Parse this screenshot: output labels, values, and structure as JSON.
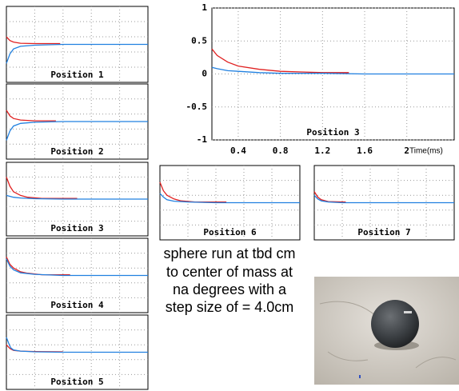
{
  "chart_data": [
    {
      "type": "line",
      "title": "Position 1",
      "xlim": [
        0,
        2
      ],
      "ylim": [
        -1,
        1
      ],
      "series": [
        {
          "color": "#e02020",
          "x": [
            0,
            0.05,
            0.1,
            0.2,
            0.4,
            0.76
          ],
          "values": [
            0.2,
            0.1,
            0.06,
            0.03,
            0.02,
            0.02
          ]
        },
        {
          "color": "#2080e0",
          "x": [
            0,
            0.05,
            0.1,
            0.2,
            0.4,
            0.8,
            2
          ],
          "values": [
            -0.5,
            -0.25,
            -0.12,
            -0.05,
            -0.02,
            0,
            0
          ]
        }
      ]
    },
    {
      "type": "line",
      "title": "Position 2",
      "xlim": [
        0,
        2
      ],
      "ylim": [
        -1,
        1
      ],
      "series": [
        {
          "color": "#e02020",
          "x": [
            0,
            0.05,
            0.1,
            0.2,
            0.4,
            0.7
          ],
          "values": [
            0.3,
            0.15,
            0.08,
            0.04,
            0.02,
            0.02
          ]
        },
        {
          "color": "#2080e0",
          "x": [
            0,
            0.05,
            0.1,
            0.2,
            0.4,
            0.8,
            2
          ],
          "values": [
            -0.5,
            -0.25,
            -0.12,
            -0.05,
            -0.02,
            0,
            0
          ]
        }
      ]
    },
    {
      "type": "line",
      "title": "Position 3",
      "xlim": [
        0,
        2
      ],
      "ylim": [
        -1,
        1
      ],
      "series": [
        {
          "color": "#e02020",
          "x": [
            0,
            0.05,
            0.1,
            0.2,
            0.3,
            0.5,
            1.0
          ],
          "values": [
            0.6,
            0.35,
            0.2,
            0.1,
            0.05,
            0.02,
            0.02
          ]
        },
        {
          "color": "#2080e0",
          "x": [
            0,
            0.1,
            0.2,
            0.4,
            0.8,
            2
          ],
          "values": [
            0.1,
            0.05,
            0.03,
            0.01,
            0,
            0
          ]
        }
      ]
    },
    {
      "type": "line",
      "title": "Position 4",
      "xlim": [
        0,
        2
      ],
      "ylim": [
        -1,
        1
      ],
      "series": [
        {
          "color": "#e02020",
          "x": [
            0,
            0.05,
            0.1,
            0.2,
            0.3,
            0.5,
            0.9
          ],
          "values": [
            0.5,
            0.3,
            0.2,
            0.1,
            0.06,
            0.02,
            0.02
          ]
        },
        {
          "color": "#2080e0",
          "x": [
            0,
            0.05,
            0.1,
            0.2,
            0.4,
            0.8,
            2
          ],
          "values": [
            0.45,
            0.25,
            0.15,
            0.07,
            0.03,
            0,
            0
          ]
        }
      ]
    },
    {
      "type": "line",
      "title": "Position 5",
      "xlim": [
        0,
        2
      ],
      "ylim": [
        -1,
        1
      ],
      "series": [
        {
          "color": "#e02020",
          "x": [
            0,
            0.05,
            0.1,
            0.2,
            0.4,
            0.8
          ],
          "values": [
            0.2,
            0.1,
            0.05,
            0.03,
            0.02,
            0.01
          ]
        },
        {
          "color": "#2080e0",
          "x": [
            0,
            0.03,
            0.06,
            0.1,
            0.2,
            0.4,
            0.8,
            2
          ],
          "values": [
            0.4,
            0.25,
            0.12,
            0.06,
            0.03,
            0.01,
            0,
            0
          ]
        }
      ]
    },
    {
      "type": "line",
      "title": "Position 3",
      "xlabel": "Time(ms)",
      "xlim": [
        0.15,
        2.45
      ],
      "ylim": [
        -1,
        1
      ],
      "xticks": [
        0.4,
        0.8,
        1.2,
        1.6,
        2
      ],
      "yticks": [
        1,
        0.5,
        0,
        -0.5,
        -1
      ],
      "grid": true,
      "series": [
        {
          "color": "#e02020",
          "x": [
            0.15,
            0.2,
            0.3,
            0.4,
            0.6,
            0.8,
            1.0,
            1.2,
            1.45
          ],
          "values": [
            0.38,
            0.28,
            0.18,
            0.12,
            0.07,
            0.04,
            0.03,
            0.02,
            0.02
          ]
        },
        {
          "color": "#2080e0",
          "x": [
            0.15,
            0.2,
            0.3,
            0.4,
            0.6,
            0.8,
            1.2,
            1.6,
            2.45
          ],
          "values": [
            0.1,
            0.08,
            0.05,
            0.04,
            0.02,
            0.01,
            0.01,
            0,
            0
          ]
        }
      ]
    },
    {
      "type": "line",
      "title": "Position 6",
      "xlim": [
        0,
        2
      ],
      "ylim": [
        -1,
        1
      ],
      "series": [
        {
          "color": "#e02020",
          "x": [
            0,
            0.05,
            0.1,
            0.2,
            0.3,
            0.5,
            0.95
          ],
          "values": [
            0.55,
            0.32,
            0.2,
            0.1,
            0.05,
            0.02,
            0.02
          ]
        },
        {
          "color": "#2080e0",
          "x": [
            0,
            0.05,
            0.1,
            0.2,
            0.4,
            0.8,
            2
          ],
          "values": [
            0.25,
            0.15,
            0.08,
            0.04,
            0.02,
            0,
            0
          ]
        }
      ]
    },
    {
      "type": "line",
      "title": "Position 7",
      "xlim": [
        0,
        2
      ],
      "ylim": [
        -1,
        1
      ],
      "series": [
        {
          "color": "#e02020",
          "x": [
            0,
            0.05,
            0.1,
            0.2,
            0.45
          ],
          "values": [
            0.3,
            0.15,
            0.08,
            0.03,
            0.02
          ]
        },
        {
          "color": "#2080e0",
          "x": [
            0,
            0.05,
            0.1,
            0.2,
            0.4,
            2
          ],
          "values": [
            0.2,
            0.1,
            0.05,
            0.02,
            0,
            0
          ]
        }
      ]
    }
  ],
  "caption": [
    "sphere run at tbd cm",
    "to center of mass at",
    "na degrees with a",
    "step size of = 4.0cm"
  ]
}
